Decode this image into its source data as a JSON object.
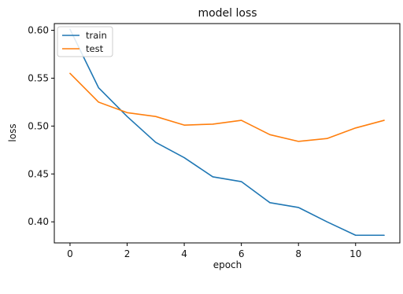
{
  "chart_data": {
    "type": "line",
    "title": "model loss",
    "xlabel": "epoch",
    "ylabel": "loss",
    "x": [
      0,
      1,
      2,
      3,
      4,
      5,
      6,
      7,
      8,
      9,
      10,
      11
    ],
    "xlim": [
      -0.55,
      11.55
    ],
    "ylim": [
      0.378,
      0.607
    ],
    "xticks": [
      0,
      2,
      4,
      6,
      8,
      10
    ],
    "yticks": [
      0.4,
      0.45,
      0.5,
      0.55,
      0.6
    ],
    "xtick_labels": [
      "0",
      "2",
      "4",
      "6",
      "8",
      "10"
    ],
    "ytick_labels": [
      "0.40",
      "0.45",
      "0.50",
      "0.55",
      "0.60"
    ],
    "grid": false,
    "legend": "top-left",
    "series": [
      {
        "name": "train",
        "color": "#1f77b4",
        "values": [
          0.601,
          0.54,
          0.51,
          0.483,
          0.467,
          0.447,
          0.442,
          0.42,
          0.415,
          0.4,
          0.386,
          0.386
        ]
      },
      {
        "name": "test",
        "color": "#ff7f0e",
        "values": [
          0.555,
          0.525,
          0.514,
          0.51,
          0.501,
          0.502,
          0.506,
          0.491,
          0.484,
          0.487,
          0.498,
          0.506
        ]
      }
    ]
  }
}
